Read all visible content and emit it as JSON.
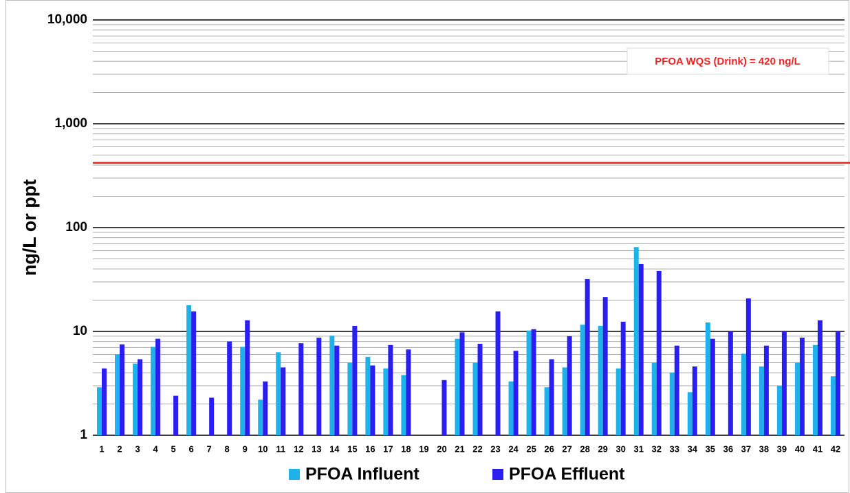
{
  "chart_data": {
    "type": "bar",
    "log_scale": true,
    "grid": true,
    "y_label": "ng/L or ppt",
    "annotation": "PFOA WQS (Drink) = 420 ng/L",
    "reference_line": {
      "value": 420,
      "color": "#ee2222"
    },
    "categories": [
      "1",
      "2",
      "3",
      "4",
      "5",
      "6",
      "7",
      "8",
      "9",
      "10",
      "11",
      "12",
      "13",
      "14",
      "15",
      "16",
      "17",
      "18",
      "19",
      "20",
      "21",
      "22",
      "23",
      "24",
      "25",
      "26",
      "27",
      "28",
      "29",
      "30",
      "31",
      "32",
      "33",
      "34",
      "35",
      "36",
      "37",
      "38",
      "39",
      "40",
      "41",
      "42"
    ],
    "series": [
      {
        "name": "PFOA Influent",
        "color": "#1fb2ea",
        "values": [
          2.9,
          6.0,
          4.9,
          7.1,
          null,
          17.9,
          null,
          null,
          7.1,
          2.2,
          6.3,
          null,
          null,
          9.1,
          5.0,
          5.7,
          4.4,
          3.8,
          null,
          null,
          8.5,
          5.0,
          null,
          3.3,
          10.2,
          2.9,
          4.5,
          11.6,
          11.3,
          4.4,
          65,
          5.0,
          4.0,
          2.6,
          12.2,
          null,
          6.1,
          4.6,
          3.0,
          5.0,
          7.4,
          3.7
        ]
      },
      {
        "name": "PFOA Effluent",
        "color": "#2a1ff0",
        "values": [
          4.4,
          7.5,
          5.4,
          8.5,
          2.4,
          15.6,
          2.3,
          8.0,
          12.8,
          3.3,
          4.5,
          7.7,
          8.7,
          7.3,
          11.3,
          4.7,
          7.4,
          6.7,
          null,
          3.4,
          9.8,
          7.6,
          15.6,
          6.5,
          10.5,
          5.4,
          9.0,
          31.9,
          21.4,
          12.4,
          44.6,
          38.3,
          7.3,
          4.6,
          8.5,
          10.0,
          20.8,
          7.3,
          10.0,
          8.7,
          12.8,
          10.0
        ]
      }
    ],
    "ylim": [
      1,
      10000
    ],
    "yticks": [
      1,
      10,
      100,
      {
        "value": 1000,
        "label": "1,000"
      },
      {
        "value": 10000,
        "label": "10,000"
      }
    ]
  }
}
